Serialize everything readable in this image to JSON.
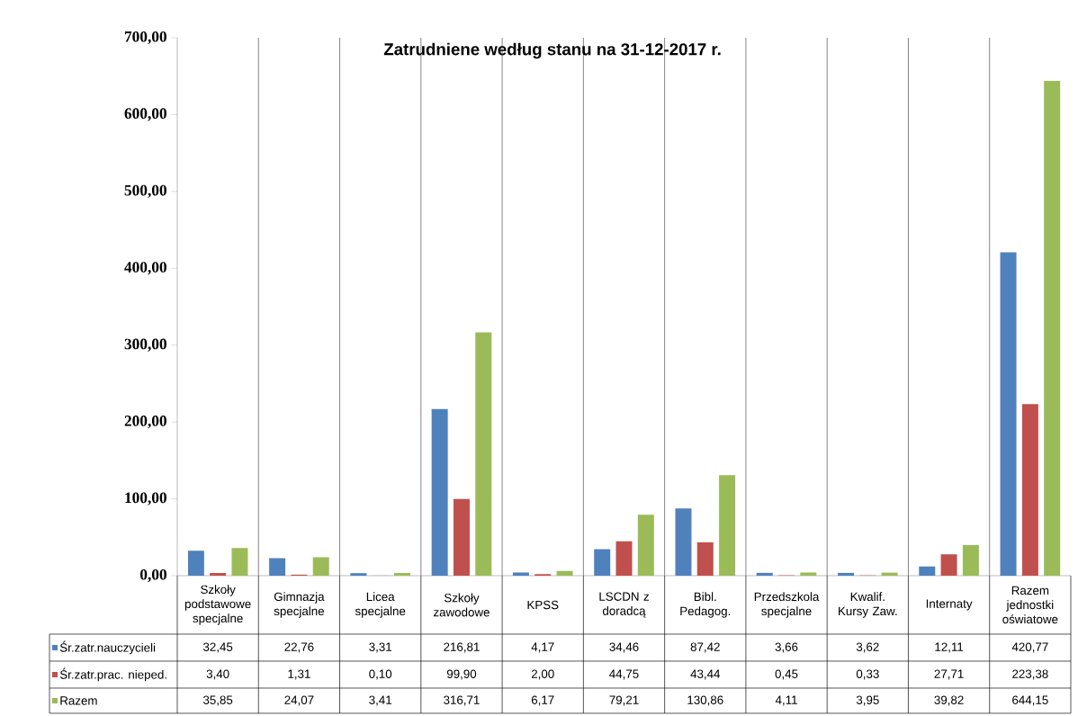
{
  "chart_data": {
    "type": "bar",
    "title": "Zatrudniene według stanu na 31-12-2017 r.",
    "categories": [
      "Szkoły podstawowe specjalne",
      "Gimnazja specjalne",
      "Licea specjalne",
      "Szkoły zawodowe",
      "KPSS",
      "LSCDN z doradcą",
      "Bibl. Pedagog.",
      "Przedszkola specjalne",
      "Kwalif. Kursy Zaw.",
      "Internaty",
      "Razem jednostki oświatowe"
    ],
    "series": [
      {
        "name": "Śr.zatr.nauczycieli",
        "color": "#4f81bd",
        "values": [
          32.45,
          22.76,
          3.31,
          216.81,
          4.17,
          34.46,
          87.42,
          3.66,
          3.62,
          12.11,
          420.77
        ],
        "value_labels": [
          "32,45",
          "22,76",
          "3,31",
          "216,81",
          "4,17",
          "34,46",
          "87,42",
          "3,66",
          "3,62",
          "12,11",
          "420,77"
        ]
      },
      {
        "name": "Śr.zatr.prac. nieped.",
        "color": "#c0504d",
        "values": [
          3.4,
          1.31,
          0.1,
          99.9,
          2.0,
          44.75,
          43.44,
          0.45,
          0.33,
          27.71,
          223.38
        ],
        "value_labels": [
          "3,40",
          "1,31",
          "0,10",
          "99,90",
          "2,00",
          "44,75",
          "43,44",
          "0,45",
          "0,33",
          "27,71",
          "223,38"
        ]
      },
      {
        "name": "Razem",
        "color": "#9bbb59",
        "values": [
          35.85,
          24.07,
          3.41,
          316.71,
          6.17,
          79.21,
          130.86,
          4.11,
          3.95,
          39.82,
          644.15
        ],
        "value_labels": [
          "35,85",
          "24,07",
          "3,41",
          "316,71",
          "6,17",
          "79,21",
          "130,86",
          "4,11",
          "3,95",
          "39,82",
          "644,15"
        ]
      }
    ],
    "ylim": [
      0,
      700
    ],
    "yticks": [
      {
        "value": 0,
        "label": "0,00"
      },
      {
        "value": 100,
        "label": "100,00"
      },
      {
        "value": 200,
        "label": "200,00"
      },
      {
        "value": 300,
        "label": "300,00"
      },
      {
        "value": 400,
        "label": "400,00"
      },
      {
        "value": 500,
        "label": "500,00"
      },
      {
        "value": 600,
        "label": "600,00"
      },
      {
        "value": 700,
        "label": "700,00"
      }
    ],
    "grid": "x",
    "legend": "bottom"
  }
}
